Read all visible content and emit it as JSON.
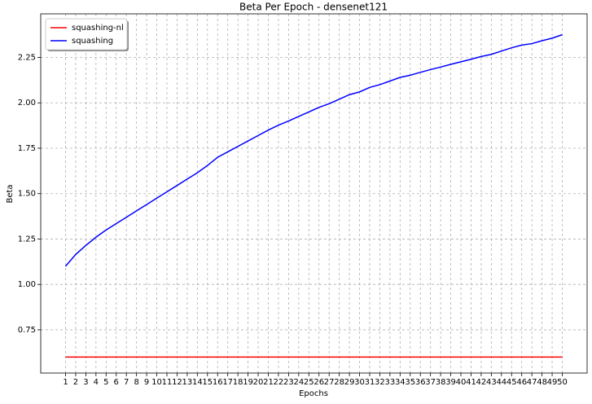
{
  "chart_data": {
    "type": "line",
    "title": "Beta Per Epoch - densenet121",
    "x_label": "Epochs",
    "y_label": "Beta",
    "x": [
      1,
      2,
      3,
      4,
      5,
      6,
      7,
      8,
      9,
      10,
      11,
      12,
      13,
      14,
      15,
      16,
      17,
      18,
      19,
      20,
      21,
      22,
      23,
      24,
      25,
      26,
      27,
      28,
      29,
      30,
      31,
      32,
      33,
      34,
      35,
      36,
      37,
      38,
      39,
      40,
      41,
      42,
      43,
      44,
      45,
      46,
      47,
      48,
      49,
      50
    ],
    "series": [
      {
        "name": "squashing-nl",
        "color": "#ff0000",
        "values": [
          0.6,
          0.6,
          0.6,
          0.6,
          0.6,
          0.6,
          0.6,
          0.6,
          0.6,
          0.6,
          0.6,
          0.6,
          0.6,
          0.6,
          0.6,
          0.6,
          0.6,
          0.6,
          0.6,
          0.6,
          0.6,
          0.6,
          0.6,
          0.6,
          0.6,
          0.6,
          0.6,
          0.6,
          0.6,
          0.6,
          0.6,
          0.6,
          0.6,
          0.6,
          0.6,
          0.6,
          0.6,
          0.6,
          0.6,
          0.6,
          0.6,
          0.6,
          0.6,
          0.6,
          0.6,
          0.6,
          0.6,
          0.6,
          0.6,
          0.6
        ]
      },
      {
        "name": "squashing",
        "color": "#0000ff",
        "values": [
          1.1,
          1.165,
          1.215,
          1.26,
          1.3,
          1.335,
          1.37,
          1.405,
          1.44,
          1.475,
          1.51,
          1.545,
          1.58,
          1.615,
          1.655,
          1.7,
          1.73,
          1.76,
          1.79,
          1.82,
          1.85,
          1.877,
          1.9,
          1.925,
          1.95,
          1.975,
          1.995,
          2.02,
          2.045,
          2.06,
          2.085,
          2.1,
          2.12,
          2.14,
          2.152,
          2.168,
          2.183,
          2.197,
          2.212,
          2.226,
          2.24,
          2.255,
          2.267,
          2.285,
          2.303,
          2.318,
          2.326,
          2.342,
          2.356,
          2.375
        ]
      }
    ],
    "xlim": [
      -1.45,
      52.45
    ],
    "ylim": [
      0.512,
      2.49
    ],
    "xticks": [
      1,
      2,
      3,
      4,
      5,
      6,
      7,
      8,
      9,
      10,
      11,
      12,
      13,
      14,
      15,
      16,
      17,
      18,
      19,
      20,
      21,
      22,
      23,
      24,
      25,
      26,
      27,
      28,
      29,
      30,
      31,
      32,
      33,
      34,
      35,
      36,
      37,
      38,
      39,
      40,
      41,
      42,
      43,
      44,
      45,
      46,
      47,
      48,
      49,
      50
    ],
    "yticks": [
      {
        "value": 0.75,
        "label": "0.75"
      },
      {
        "value": 1.0,
        "label": "1.00"
      },
      {
        "value": 1.25,
        "label": "1.25"
      },
      {
        "value": 1.5,
        "label": "1.50"
      },
      {
        "value": 1.75,
        "label": "1.75"
      },
      {
        "value": 2.0,
        "label": "2.00"
      },
      {
        "value": 2.25,
        "label": "2.25"
      }
    ],
    "grid": true,
    "legend_position": "upper-left"
  }
}
